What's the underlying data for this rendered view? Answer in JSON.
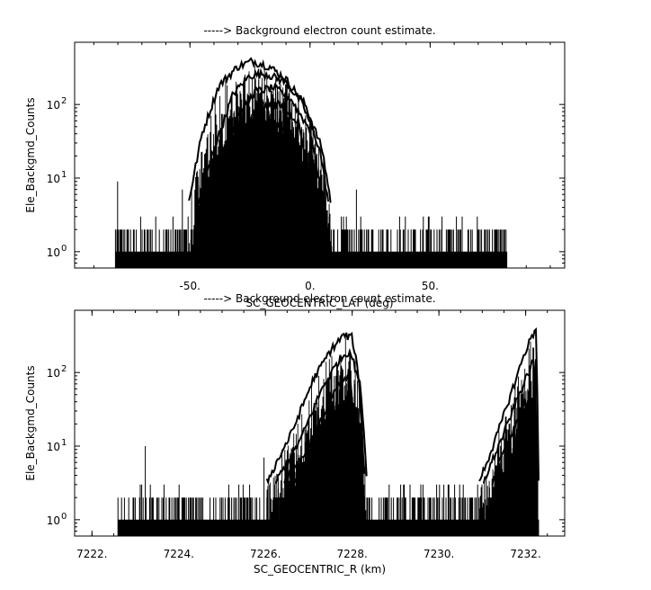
{
  "chart_data": [
    {
      "type": "area",
      "title": "-----> Background electron count estimate.",
      "xlabel": "SC_GEOCENTRIC_LAT (deg)",
      "ylabel": "Ele_Backgmd_Counts",
      "xlim": [
        -98,
        106
      ],
      "ylim": [
        0.6,
        700
      ],
      "log_y": true,
      "x_ticks": [
        {
          "value": -50,
          "label": "-50."
        },
        {
          "value": 0,
          "label": "0."
        },
        {
          "value": 50,
          "label": "50."
        }
      ],
      "y_ticks": [
        {
          "value": 1,
          "label": "10",
          "exp": "0"
        },
        {
          "value": 10,
          "label": "10",
          "exp": "1"
        },
        {
          "value": 100,
          "label": "10",
          "exp": "2"
        }
      ],
      "x_range": [
        -81,
        82
      ],
      "noise_floor": {
        "ranges": [
          [
            -81,
            -51
          ],
          [
            9,
            82
          ]
        ],
        "levels": [
          1,
          2,
          3
        ],
        "spike_max": 12
      },
      "series": [
        {
          "x": [
            -51,
            -45,
            -38,
            -30,
            -24,
            -17,
            -10,
            -2,
            5,
            9
          ],
          "values": [
            4,
            40,
            180,
            330,
            390,
            330,
            220,
            100,
            25,
            4
          ]
        },
        {
          "x": [
            -48,
            -40,
            -32,
            -25,
            -18,
            -10,
            -3,
            4,
            8
          ],
          "values": [
            3,
            25,
            140,
            250,
            260,
            200,
            100,
            25,
            4
          ]
        },
        {
          "x": [
            -46,
            -38,
            -30,
            -23,
            -15,
            -8,
            0,
            6
          ],
          "values": [
            3,
            15,
            70,
            150,
            170,
            120,
            45,
            4
          ]
        },
        {
          "x": [
            -42,
            -34,
            -26,
            -20,
            -13,
            -5,
            2
          ],
          "values": [
            3,
            12,
            50,
            90,
            100,
            60,
            5
          ]
        },
        {
          "x": [
            -38,
            -31,
            -25,
            -19,
            -13,
            -6,
            0
          ],
          "values": [
            3,
            6,
            20,
            45,
            55,
            25,
            4
          ]
        },
        {
          "x": [
            -34,
            -29,
            -24,
            -19,
            -14,
            -9,
            -4
          ],
          "values": [
            3,
            5,
            10,
            20,
            22,
            12,
            3
          ]
        }
      ]
    },
    {
      "type": "area",
      "title": "-----> Background electron count estimate.",
      "xlabel": "SC_GEOCENTRIC_R (km)",
      "ylabel": "Ele_Backgmd_Counts",
      "xlim": [
        7221.6,
        7232.9
      ],
      "ylim": [
        0.6,
        700
      ],
      "log_y": true,
      "x_ticks": [
        {
          "value": 7222,
          "label": "7222."
        },
        {
          "value": 7224,
          "label": "7224."
        },
        {
          "value": 7226,
          "label": "7226."
        },
        {
          "value": 7228,
          "label": "7228."
        },
        {
          "value": 7230,
          "label": "7230."
        },
        {
          "value": 7232,
          "label": "7232."
        }
      ],
      "y_ticks": [
        {
          "value": 1,
          "label": "10",
          "exp": "0"
        },
        {
          "value": 10,
          "label": "10",
          "exp": "1"
        },
        {
          "value": 100,
          "label": "10",
          "exp": "2"
        }
      ],
      "x_range": [
        7222.6,
        7232.3
      ],
      "noise_floor": {
        "ranges": [
          [
            7222.6,
            7226.1
          ],
          [
            7228.3,
            7231.0
          ]
        ],
        "levels": [
          1,
          2,
          3
        ],
        "spike_max": 11
      },
      "series": [
        {
          "x": [
            7226.0,
            7226.6,
            7227.1,
            7227.5,
            7227.8,
            7228.0,
            7228.2,
            7228.35
          ],
          "values": [
            3,
            15,
            80,
            200,
            320,
            300,
            60,
            3
          ]
        },
        {
          "x": [
            7226.2,
            7226.8,
            7227.3,
            7227.7,
            7227.95,
            7228.15,
            7228.3
          ],
          "values": [
            3,
            12,
            60,
            150,
            200,
            80,
            3
          ]
        },
        {
          "x": [
            7226.4,
            7226.9,
            7227.4,
            7227.7,
            7227.95,
            7228.15
          ],
          "values": [
            3,
            8,
            30,
            70,
            90,
            3
          ]
        },
        {
          "x": [
            7226.6,
            7227.1,
            7227.5,
            7227.8,
            7228.0
          ],
          "values": [
            3,
            8,
            20,
            35,
            3
          ]
        },
        {
          "x": [
            7226.9,
            7227.3,
            7227.6,
            7227.8,
            7227.95
          ],
          "values": [
            2,
            5,
            10,
            14,
            3
          ]
        },
        {
          "x": [
            7230.9,
            7231.3,
            7231.7,
            7232.0,
            7232.25,
            7232.3
          ],
          "values": [
            3,
            12,
            60,
            200,
            420,
            3
          ]
        },
        {
          "x": [
            7231.0,
            7231.5,
            7231.9,
            7232.2,
            7232.28
          ],
          "values": [
            3,
            15,
            60,
            150,
            3
          ]
        },
        {
          "x": [
            7231.2,
            7231.6,
            7232.0,
            7232.25
          ],
          "values": [
            3,
            12,
            40,
            3
          ]
        }
      ]
    }
  ]
}
